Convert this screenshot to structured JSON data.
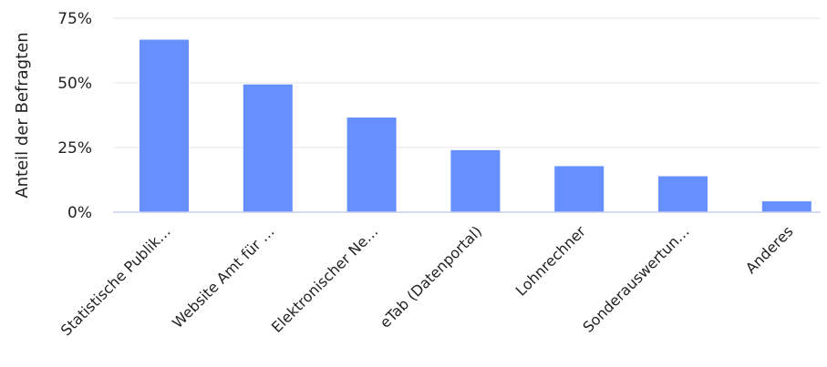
{
  "chart_data": {
    "type": "bar",
    "title": "",
    "ylabel": "Anteil der Befragten",
    "xlabel": "",
    "categories": [
      "Statistische Publik…",
      "Website Amt für …",
      "Elektronischer Ne…",
      "eTab (Datenportal)",
      "Lohnrechner",
      "Sonderauswertun…",
      "Anderes"
    ],
    "values": [
      66.7,
      49.4,
      36.6,
      24.0,
      17.8,
      13.9,
      4.2
    ],
    "ylim": [
      0,
      75
    ],
    "yticks": [
      0,
      25,
      50,
      75
    ],
    "ytick_labels": [
      "0%",
      "25%",
      "50%",
      "75%"
    ],
    "grid": true,
    "bar_color": "#6690ff"
  }
}
